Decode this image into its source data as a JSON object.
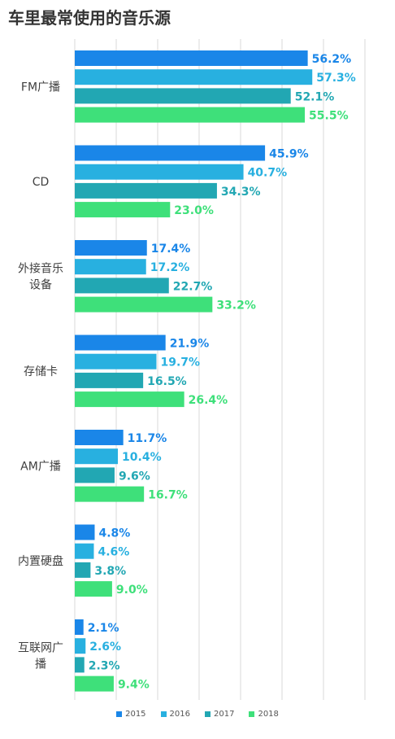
{
  "chart_data": {
    "type": "bar",
    "orientation": "horizontal",
    "title": "车里最常使用的音乐源",
    "categories": [
      "FM广播",
      "CD",
      "外接音乐设备",
      "存储卡",
      "AM广播",
      "内置硬盘",
      "互联网广播"
    ],
    "category_lines": [
      [
        "FM广播"
      ],
      [
        "CD"
      ],
      [
        "外接音乐",
        "设备"
      ],
      [
        "存储卡"
      ],
      [
        "AM广播"
      ],
      [
        "内置硬盘"
      ],
      [
        "互联网广",
        "播"
      ]
    ],
    "series": [
      {
        "name": "2015",
        "color": "#1a86e8",
        "values": [
          56.2,
          45.9,
          17.4,
          21.9,
          11.7,
          4.8,
          2.1
        ],
        "labels": [
          "56.2%",
          "45.9%",
          "17.4%",
          "21.9%",
          "11.7%",
          "4.8%",
          "2.1%"
        ]
      },
      {
        "name": "2016",
        "color": "#28b0e0",
        "values": [
          57.3,
          40.7,
          17.2,
          19.7,
          10.4,
          4.6,
          2.6
        ],
        "labels": [
          "57.3%",
          "40.7%",
          "17.2%",
          "19.7%",
          "10.4%",
          "4.6%",
          "2.6%"
        ]
      },
      {
        "name": "2017",
        "color": "#22a7b3",
        "values": [
          52.1,
          34.3,
          22.7,
          16.5,
          9.6,
          3.8,
          2.3
        ],
        "labels": [
          "52.1%",
          "34.3%",
          "22.7%",
          "16.5%",
          "9.6%",
          "3.8%",
          "2.3%"
        ]
      },
      {
        "name": "2018",
        "color": "#3ee07a",
        "values": [
          55.5,
          23.0,
          33.2,
          26.4,
          16.7,
          9.0,
          9.4
        ],
        "labels": [
          "55.5%",
          "23.0%",
          "33.2%",
          "26.4%",
          "16.7%",
          "9.0%",
          "9.4%"
        ]
      }
    ],
    "xlim": [
      0,
      70
    ],
    "grid": true,
    "legend_position": "bottom"
  }
}
